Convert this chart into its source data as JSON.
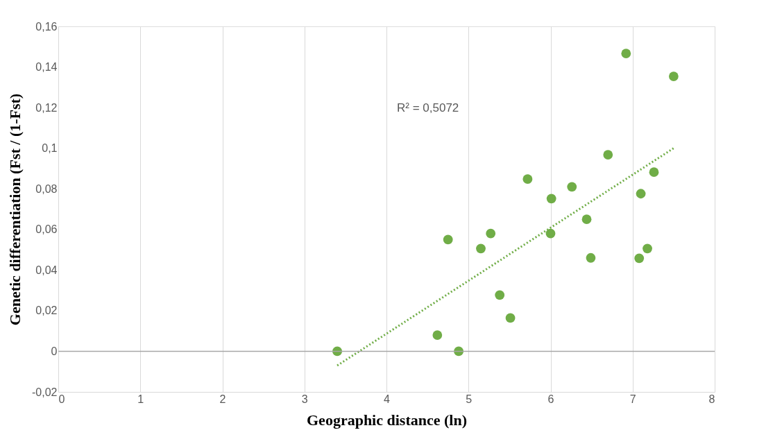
{
  "chart_data": {
    "type": "scatter",
    "xlabel": "Geographic distance (ln)",
    "ylabel": "Genetic differentiation (Fst / (1-Fst)",
    "annotations": [
      "R² = 0,5072"
    ],
    "series": [
      {
        "color": "#70ad47",
        "marker": "circle",
        "x": [
          3.4,
          4.62,
          4.75,
          4.88,
          5.15,
          5.27,
          5.38,
          5.51,
          5.72,
          6.01,
          6.0,
          6.26,
          6.44,
          6.49,
          6.7,
          6.92,
          7.08,
          7.1,
          7.18,
          7.26,
          7.5
        ],
        "values": [
          0,
          0.008,
          0.055,
          0,
          0.0506,
          0.058,
          0.0277,
          0.0164,
          0.0848,
          0.0752,
          0.058,
          0.081,
          0.065,
          0.046,
          0.0968,
          0.1466,
          0.0458,
          0.0776,
          0.0506,
          0.0882,
          0.1354
        ]
      },
      {
        "type": "line",
        "color": "#70ad47",
        "line_style": "dotted",
        "x": [
          3.4,
          7.5
        ],
        "values": [
          -0.007,
          0.1
        ]
      }
    ],
    "xlim": [
      0,
      8
    ],
    "xticks": [
      0,
      1,
      2,
      3,
      4,
      5,
      6,
      7,
      8
    ],
    "ylim": [
      -0.02,
      0.16
    ],
    "yticks": [
      {
        "value": -0.02,
        "label": "-0,02"
      },
      0,
      {
        "value": 0.02,
        "label": "0,02"
      },
      {
        "value": 0.04,
        "label": "0,04"
      },
      {
        "value": 0.06,
        "label": "0,06"
      },
      {
        "value": 0.08,
        "label": "0,08"
      },
      {
        "value": 0.1,
        "label": "0,1"
      },
      {
        "value": 0.12,
        "label": "0,12"
      },
      {
        "value": 0.14,
        "label": "0,14"
      },
      {
        "value": 0.16,
        "label": "0,16"
      }
    ],
    "ref_lines": [
      {
        "axis": "y",
        "value": 0,
        "color": "#a6a6a6"
      }
    ],
    "grid": "x"
  }
}
